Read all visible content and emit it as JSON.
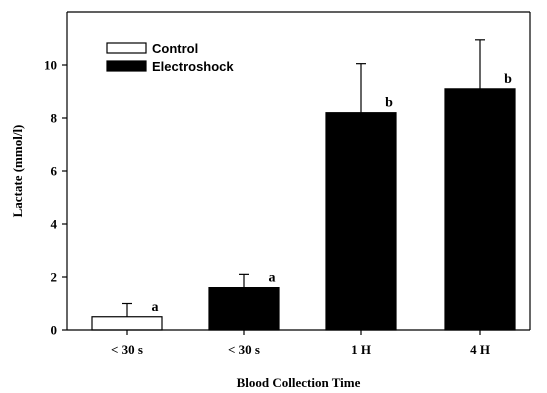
{
  "chart_data": {
    "type": "bar",
    "title": "",
    "xlabel": "Blood Collection Time",
    "ylabel": "Lactate (mmol/l)",
    "ylim": [
      0,
      12
    ],
    "yticks": [
      0,
      2,
      4,
      6,
      8,
      10
    ],
    "grid": false,
    "legend_position": "top-left",
    "legend": [
      {
        "label": "Control",
        "fill": "#ffffff"
      },
      {
        "label": "Electroshock",
        "fill": "#000000"
      }
    ],
    "bars": [
      {
        "category": "< 30 s",
        "group": "Control",
        "value": 0.5,
        "error": 0.5,
        "significance": "a"
      },
      {
        "category": "< 30 s",
        "group": "Electroshock",
        "value": 1.6,
        "error": 0.5,
        "significance": "a"
      },
      {
        "category": "1 H",
        "group": "Electroshock",
        "value": 8.2,
        "error": 1.85,
        "significance": "b"
      },
      {
        "category": "4 H",
        "group": "Electroshock",
        "value": 9.1,
        "error": 1.85,
        "significance": "b"
      }
    ]
  }
}
